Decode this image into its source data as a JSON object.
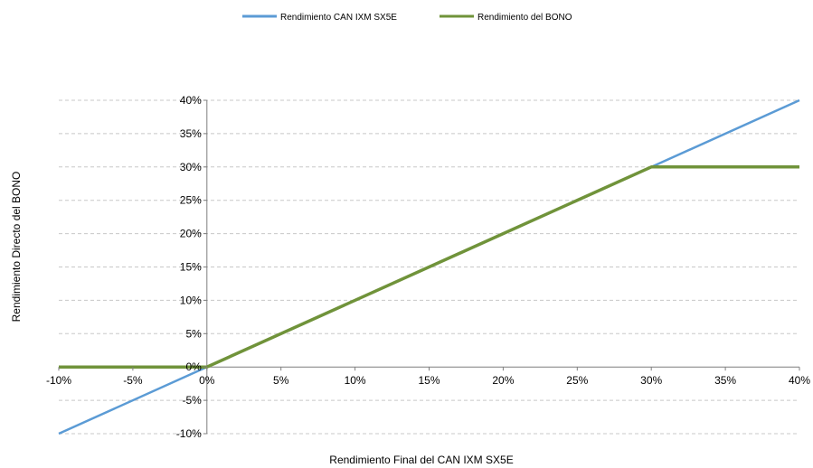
{
  "chart_data": {
    "type": "line",
    "xlabel": "Rendimiento Final del CAN IXM  SX5E",
    "ylabel": "Rendimiento Directo del BONO",
    "xlim": [
      -10,
      40
    ],
    "ylim": [
      -10,
      40
    ],
    "x_ticks": [
      "-10%",
      "-5%",
      "0%",
      "5%",
      "10%",
      "15%",
      "20%",
      "25%",
      "30%",
      "35%",
      "40%"
    ],
    "y_ticks": [
      "40%",
      "35%",
      "30%",
      "25%",
      "20%",
      "15%",
      "10%",
      "5%",
      "0%",
      "-5%",
      "-10%"
    ],
    "grid": "horizontal dashed",
    "legend_position": "top",
    "series": [
      {
        "name": "Rendimiento CAN IXM  SX5E",
        "color": "#5b9bd5",
        "points": [
          [
            -10,
            -10
          ],
          [
            40,
            40
          ]
        ]
      },
      {
        "name": "Rendimiento del BONO",
        "color": "#70933a",
        "points": [
          [
            -10,
            0
          ],
          [
            0,
            0
          ],
          [
            30,
            30
          ],
          [
            40,
            30
          ]
        ]
      }
    ]
  }
}
